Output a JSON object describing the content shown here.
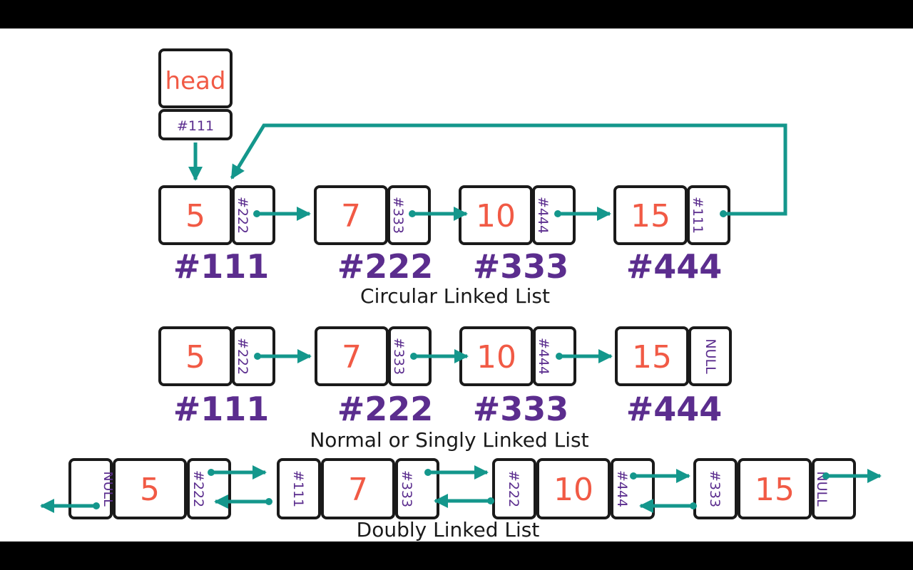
{
  "head": {
    "label": "head",
    "pointer": "#111"
  },
  "circular": {
    "caption": "Circular Linked List",
    "nodes": [
      {
        "value": "5",
        "next": "#222",
        "address": "#111"
      },
      {
        "value": "7",
        "next": "#333",
        "address": "#222"
      },
      {
        "value": "10",
        "next": "#444",
        "address": "#333"
      },
      {
        "value": "15",
        "next": "#111",
        "address": "#444"
      }
    ]
  },
  "singly": {
    "caption": "Normal or Singly Linked List",
    "nodes": [
      {
        "value": "5",
        "next": "#222",
        "address": "#111"
      },
      {
        "value": "7",
        "next": "#333",
        "address": "#222"
      },
      {
        "value": "10",
        "next": "#444",
        "address": "#333"
      },
      {
        "value": "15",
        "next": "NULL",
        "address": "#444"
      }
    ]
  },
  "doubly": {
    "caption": "Doubly Linked List",
    "nodes": [
      {
        "prev": "NULL",
        "value": "5",
        "next": "#222"
      },
      {
        "prev": "#111",
        "value": "7",
        "next": "#333"
      },
      {
        "prev": "#222",
        "value": "10",
        "next": "#444"
      },
      {
        "prev": "#333",
        "value": "15",
        "next": "NULL"
      }
    ]
  },
  "colors": {
    "value": "#f15a45",
    "pointer": "#5b2d8e",
    "arrow": "#14978c",
    "box_border": "#1a1a1a"
  }
}
